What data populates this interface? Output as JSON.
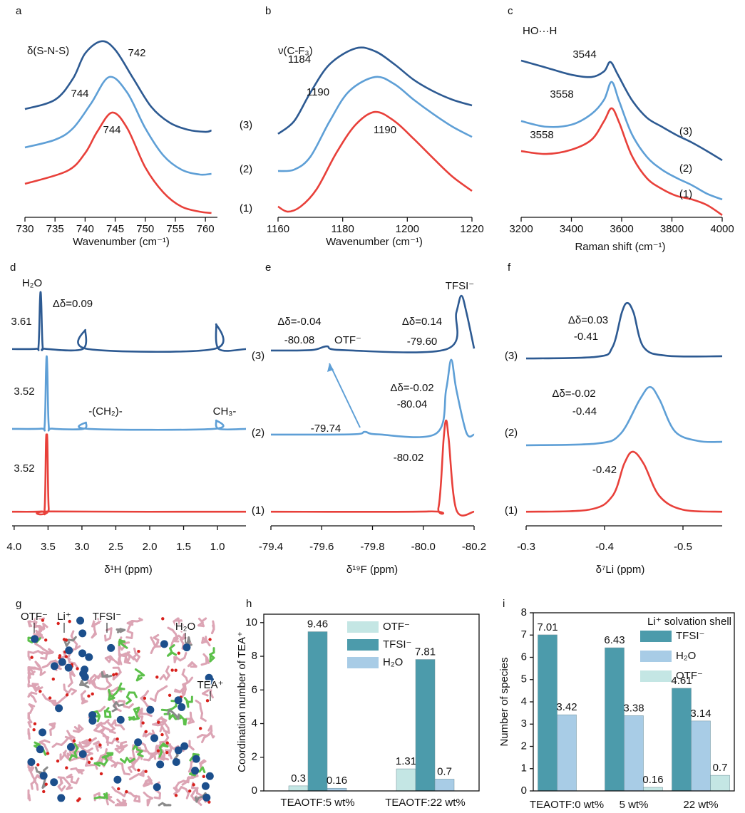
{
  "chart_data": [
    {
      "label": "a",
      "type": "line",
      "xlabel": "Wavenumber (cm⁻¹)",
      "xlim": [
        730,
        762
      ],
      "xticks": [
        730,
        735,
        740,
        745,
        750,
        755,
        760
      ],
      "ylim": [
        0,
        100
      ],
      "annotations": [
        "δ(S-N-S)",
        "742",
        "744",
        "744"
      ],
      "series": [
        {
          "name": "(1)",
          "color": "#e8403a",
          "x": [
            730,
            737,
            740,
            742,
            744.5,
            747,
            750,
            753,
            756,
            759,
            761
          ],
          "values": [
            16.5,
            22.8,
            31.6,
            42.1,
            51.6,
            43.9,
            24.6,
            12.3,
            5.3,
            2.8,
            2.1
          ]
        },
        {
          "name": "(2)",
          "color": "#5e9fd6",
          "x": [
            730,
            735,
            738,
            741,
            744,
            747,
            750,
            753,
            756,
            759,
            761
          ],
          "values": [
            34.4,
            38.2,
            43.9,
            56.1,
            69.1,
            61.4,
            43.9,
            30.5,
            23.5,
            21.1,
            21.4
          ]
        },
        {
          "name": "(3)",
          "color": "#2d5a92",
          "x": [
            730,
            735,
            738,
            740,
            742.7,
            745,
            748,
            751,
            754,
            757,
            760,
            761
          ],
          "values": [
            53.3,
            57.9,
            68.4,
            80.7,
            86.7,
            82.5,
            68.4,
            54.4,
            46.7,
            43.2,
            42.1,
            42.8
          ]
        }
      ]
    },
    {
      "label": "b",
      "type": "line",
      "xlabel": "Wavenumber (cm⁻¹)",
      "xlim": [
        1160,
        1220
      ],
      "xticks": [
        1160,
        1180,
        1200,
        1220
      ],
      "ylim": [
        0,
        100
      ],
      "annotations": [
        "ν(C-F₃)",
        "1184",
        "1190",
        "1190"
      ],
      "series": [
        {
          "color": "#e8403a",
          "x": [
            1160,
            1163,
            1167,
            1172,
            1178,
            1184,
            1190,
            1196,
            1202,
            1208,
            1214,
            1220
          ],
          "values": [
            5.3,
            2.8,
            5.3,
            14.0,
            31.6,
            45.6,
            51.9,
            47.4,
            38.6,
            29.1,
            20.0,
            13.0
          ]
        },
        {
          "color": "#5e9fd6",
          "x": [
            1160,
            1165,
            1170,
            1176,
            1182,
            1190,
            1196,
            1202,
            1208,
            1214,
            1220
          ],
          "values": [
            22.8,
            23.5,
            29.8,
            47.4,
            62.1,
            69.1,
            65.6,
            57.9,
            50.9,
            44.6,
            39.6
          ]
        },
        {
          "color": "#2d5a92",
          "x": [
            1160,
            1165,
            1170,
            1176,
            1184,
            1190,
            1196,
            1202,
            1208,
            1214,
            1220
          ],
          "values": [
            41.1,
            47.4,
            61.4,
            75.4,
            83.2,
            81.8,
            75.4,
            67.7,
            62.1,
            57.9,
            55.1
          ]
        }
      ]
    },
    {
      "label": "c",
      "type": "line",
      "xlabel": "Raman shift (cm⁻¹)",
      "xlim": [
        3200,
        4000
      ],
      "xticks": [
        3200,
        3400,
        3600,
        3800,
        4000
      ],
      "ylim": [
        0,
        100
      ],
      "annotations": [
        "HO···H",
        "3544",
        "3558",
        "3558"
      ],
      "series": [
        {
          "name": "(1)",
          "color": "#e8403a",
          "x": [
            3200,
            3300,
            3400,
            3480,
            3530,
            3560,
            3590,
            3640,
            3700,
            3760,
            3820,
            3880,
            3940,
            4000
          ],
          "values": [
            32.6,
            31.2,
            33.3,
            38.2,
            47.4,
            53.7,
            46.7,
            30.5,
            19.3,
            14.0,
            10.5,
            8.8,
            6.0,
            1.1
          ]
        },
        {
          "name": "(2)",
          "color": "#5e9fd6",
          "x": [
            3200,
            3300,
            3400,
            3480,
            3530,
            3560,
            3590,
            3640,
            3700,
            3760,
            3820,
            3880,
            3940,
            4000
          ],
          "values": [
            47.4,
            44.6,
            45.6,
            50.9,
            57.9,
            66.7,
            57.2,
            41.1,
            29.8,
            23.5,
            19.3,
            15.8,
            11.6,
            8.8
          ]
        },
        {
          "name": "(3)",
          "color": "#2d5a92",
          "x": [
            3200,
            3300,
            3400,
            3480,
            3530,
            3555,
            3585,
            3640,
            3700,
            3760,
            3820,
            3880,
            3940,
            4000
          ],
          "values": [
            77.2,
            73.7,
            70.2,
            69.1,
            71.9,
            76.5,
            70.2,
            57.9,
            49.1,
            44.6,
            40.4,
            36.8,
            32.6,
            28.1
          ]
        }
      ]
    },
    {
      "label": "d",
      "type": "line",
      "xlabel": "δ¹H (ppm)",
      "xlim": [
        4.03,
        0.58
      ],
      "xticks": [
        {
          "value": 4,
          "label": "4.0"
        },
        3.5,
        {
          "value": 3,
          "label": "3.0"
        },
        2.5,
        {
          "value": 2,
          "label": "2.0"
        },
        1.5,
        {
          "value": 1,
          "label": "1.0"
        }
      ],
      "ylim": [
        0,
        100
      ],
      "annotations": [
        "H₂O",
        "Δδ=0.09",
        "3.61",
        "3.52",
        "-(CH₂)-",
        "CH₃-",
        "3.52"
      ],
      "series": [
        {
          "name": "(1)",
          "color": "#e8403a",
          "x": [
            4.03,
            3.6,
            3.55,
            3.53,
            3.52,
            3.51,
            3.49,
            3.44,
            0.58
          ],
          "values": [
            5.7,
            5.8,
            7.0,
            33.9,
            36.2,
            33.9,
            7.0,
            5.8,
            5.7
          ]
        },
        {
          "name": "(2)",
          "color": "#5e9fd6",
          "x": [
            4.03,
            3.6,
            3.55,
            3.53,
            3.52,
            3.51,
            3.49,
            3.44,
            2.98,
            2.94,
            2.9,
            1.06,
            1.02,
            0.98,
            0.58
          ],
          "values": [
            39.1,
            39.2,
            40.5,
            62.6,
            68.4,
            62.6,
            40.5,
            39.2,
            39.1,
            41.7,
            39.1,
            39.1,
            42.5,
            39.1,
            39.1
          ]
        },
        {
          "name": "(3)",
          "color": "#2d5a92",
          "x": [
            4.03,
            3.68,
            3.64,
            3.62,
            3.61,
            3.6,
            3.58,
            3.54,
            2.99,
            2.95,
            2.91,
            1.06,
            1.02,
            0.98,
            0.58
          ],
          "values": [
            71.3,
            71.4,
            72.5,
            90.0,
            94.3,
            90.0,
            72.5,
            71.4,
            71.3,
            79.0,
            71.3,
            71.3,
            81.3,
            71.3,
            71.3
          ]
        }
      ]
    },
    {
      "label": "e",
      "type": "line",
      "xlabel": "δ¹⁹F (ppm)",
      "xlim": [
        -79.4,
        -80.2
      ],
      "xticks": [
        -79.4,
        -79.6,
        -79.8,
        {
          "value": -80,
          "label": "-80.0"
        },
        -80.2
      ],
      "ylim": [
        0,
        100
      ],
      "annotations": [
        "Δδ=-0.04",
        "-80.08",
        "OTF⁻",
        "Δδ=0.14",
        "-79.60",
        "TFSI⁻",
        "Δδ=-0.02",
        "-80.04",
        "-79.74",
        "-80.02"
      ],
      "series": [
        {
          "name": "(1)",
          "color": "#e8403a",
          "x": [
            -79.4,
            -80.02,
            -80.06,
            -80.08,
            -80.09,
            -80.1,
            -80.13,
            -80.2
          ],
          "values": [
            5.7,
            5.8,
            7.5,
            35,
            42.5,
            35,
            6.5,
            5.7
          ]
        },
        {
          "name": "(2)",
          "color": "#5e9fd6",
          "x": [
            -79.4,
            -79.72,
            -79.77,
            -79.82,
            -80.05,
            -80.09,
            -80.11,
            -80.13,
            -80.17,
            -80.2
          ],
          "values": [
            36.8,
            36.9,
            37.9,
            36.9,
            37.2,
            55,
            67.0,
            55,
            37.5,
            36.8
          ]
        },
        {
          "name": "(3)",
          "color": "#2d5a92",
          "x": [
            -79.4,
            -79.56,
            -79.62,
            -79.68,
            -80.09,
            -80.13,
            -80.15,
            -80.17,
            -80.2
          ],
          "values": [
            70.7,
            70.9,
            72.4,
            70.9,
            71.2,
            86,
            92.8,
            86,
            71.5
          ]
        }
      ]
    },
    {
      "label": "f",
      "type": "line",
      "xlabel": "δ⁷Li (ppm)",
      "xlim": [
        -0.3,
        -0.55
      ],
      "xticks": [
        -0.3,
        -0.4,
        -0.5
      ],
      "ylim": [
        0,
        100
      ],
      "annotations": [
        "Δδ=0.03",
        "-0.41",
        "Δδ=-0.02",
        "-0.44",
        "-0.42"
      ],
      "series": [
        {
          "color": "#e8403a",
          "x": [
            -0.3,
            -0.38,
            -0.41,
            -0.425,
            -0.436,
            -0.45,
            -0.47,
            -0.5,
            -0.55
          ],
          "values": [
            5.7,
            6.5,
            12,
            25,
            29.9,
            25,
            12,
            6.5,
            5.7
          ]
        },
        {
          "color": "#5e9fd6",
          "x": [
            -0.3,
            -0.39,
            -0.42,
            -0.445,
            -0.458,
            -0.47,
            -0.49,
            -0.52,
            -0.55
          ],
          "values": [
            32.5,
            33.2,
            37,
            51,
            56.0,
            51,
            38,
            34.2,
            33.9
          ]
        },
        {
          "color": "#2d5a92",
          "x": [
            -0.3,
            -0.39,
            -0.41,
            -0.422,
            -0.429,
            -0.437,
            -0.45,
            -0.48,
            -0.55
          ],
          "values": [
            67.5,
            68.2,
            72,
            86,
            89.9,
            86,
            72,
            68.6,
            68.4
          ]
        }
      ]
    },
    {
      "label": "g",
      "type": "image",
      "annotations": [
        "OTF⁻",
        "Li⁺",
        "TFSI⁻",
        "H₂O",
        "TEA⁺"
      ]
    },
    {
      "label": "h",
      "type": "bar",
      "ylabel": "Coordination number of TEA⁺",
      "categories": [
        "TEAOTF:5 wt%",
        "TEAOTF:22 wt%"
      ],
      "ylim": [
        0,
        10.5
      ],
      "yticks": [
        0,
        2,
        4,
        6,
        8,
        10
      ],
      "series": [
        {
          "name": "OTF⁻",
          "color": "#c4e6e4",
          "values": [
            0.3,
            1.31
          ]
        },
        {
          "name": "TFSI⁻",
          "color": "#4c9bab",
          "values": [
            9.46,
            7.81
          ]
        },
        {
          "name": "H₂O",
          "color": "#a8cce6",
          "values": [
            0.16,
            0.7
          ]
        }
      ]
    },
    {
      "label": "i",
      "type": "bar",
      "ylabel": "Number of species",
      "legend_title": "Li⁺ solvation shell",
      "categories": [
        "TEAOTF:0 wt%",
        "5 wt%",
        "22 wt%"
      ],
      "ylim": [
        0,
        8
      ],
      "yticks": [
        0,
        1,
        2,
        3,
        4,
        5,
        6,
        7,
        8
      ],
      "series": [
        {
          "name": "TFSI⁻",
          "color": "#4c9bab",
          "values": [
            7.01,
            6.43,
            4.61
          ]
        },
        {
          "name": "H₂O",
          "color": "#a8cce6",
          "values": [
            3.42,
            3.38,
            3.14
          ]
        },
        {
          "name": "OTF⁻",
          "color": "#c4e6e4",
          "values": [
            null,
            0.16,
            0.7
          ]
        }
      ]
    }
  ]
}
